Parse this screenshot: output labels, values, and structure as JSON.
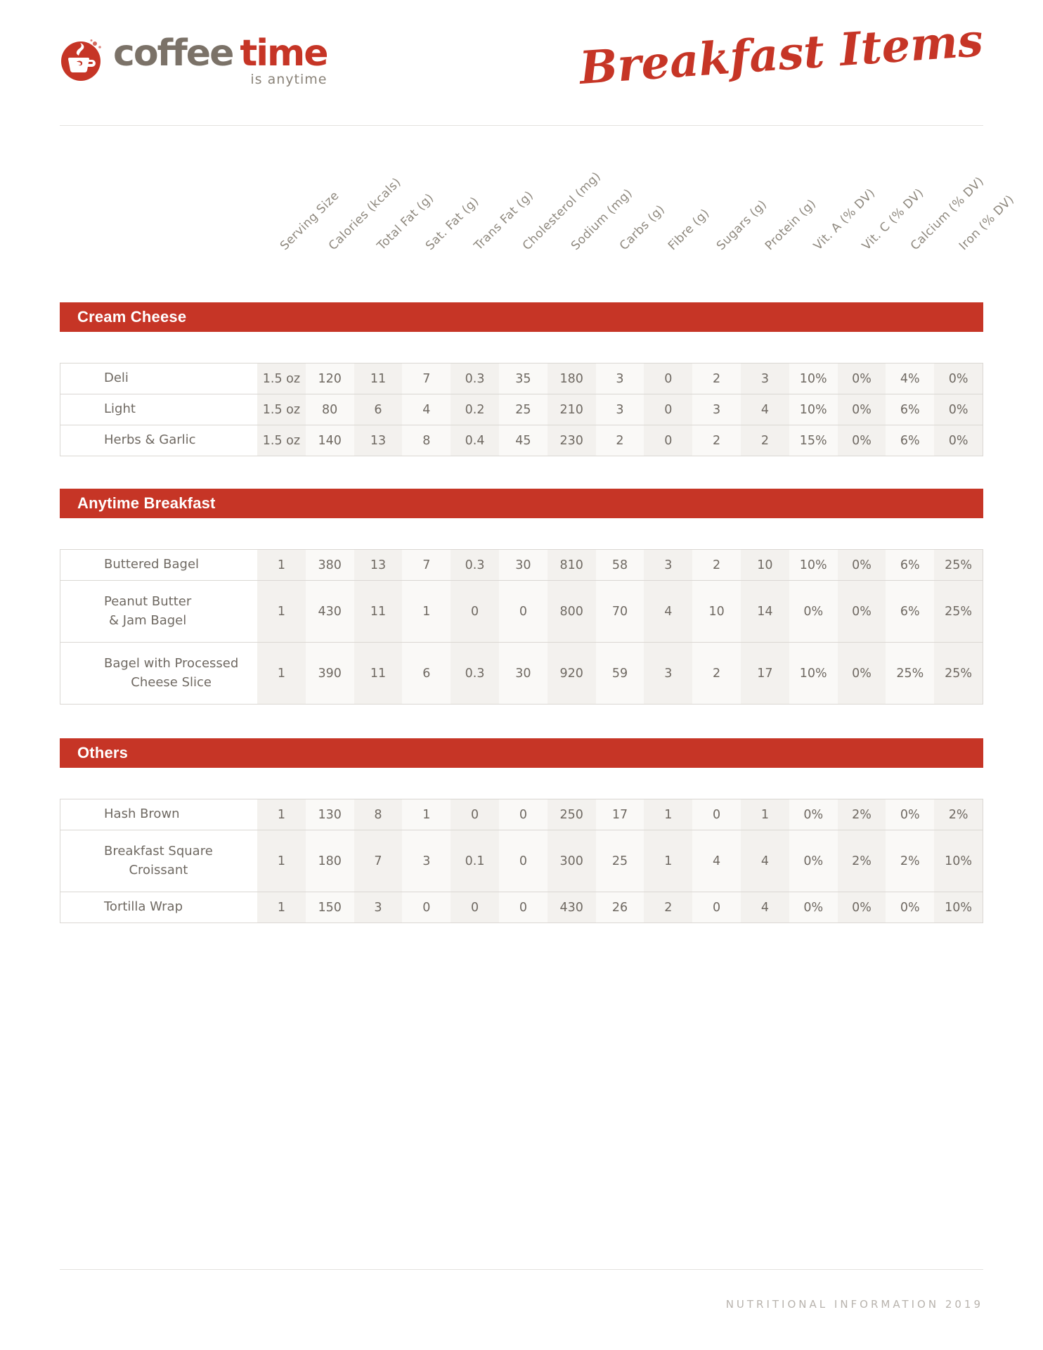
{
  "logo": {
    "word1": "coffee",
    "word2": "time",
    "tagline": "is anytime"
  },
  "header": {
    "title": "Breakfast Items"
  },
  "columns": [
    "Serving Size",
    "Calories (kcals)",
    "Total Fat (g)",
    "Sat. Fat (g)",
    "Trans Fat (g)",
    "Cholesterol (mg)",
    "Sodium (mg)",
    "Carbs (g)",
    "Fibre (g)",
    "Sugars (g)",
    "Protein (g)",
    "Vit. A (% DV)",
    "Vit. C (% DV)",
    "Calcium (% DV)",
    "Iron (% DV)"
  ],
  "sections": [
    {
      "title": "Cream Cheese",
      "rows": [
        {
          "name": "Deli",
          "values": [
            "1.5 oz",
            "120",
            "11",
            "7",
            "0.3",
            "35",
            "180",
            "3",
            "0",
            "2",
            "3",
            "10%",
            "0%",
            "4%",
            "0%"
          ]
        },
        {
          "name": "Light",
          "values": [
            "1.5 oz",
            "80",
            "6",
            "4",
            "0.2",
            "25",
            "210",
            "3",
            "0",
            "3",
            "4",
            "10%",
            "0%",
            "6%",
            "0%"
          ]
        },
        {
          "name": "Herbs & Garlic",
          "values": [
            "1.5 oz",
            "140",
            "13",
            "8",
            "0.4",
            "45",
            "230",
            "2",
            "0",
            "2",
            "2",
            "15%",
            "0%",
            "6%",
            "0%"
          ]
        }
      ]
    },
    {
      "title": "Anytime Breakfast",
      "rows": [
        {
          "name": "Buttered Bagel",
          "values": [
            "1",
            "380",
            "13",
            "7",
            "0.3",
            "30",
            "810",
            "58",
            "3",
            "2",
            "10",
            "10%",
            "0%",
            "6%",
            "25%"
          ]
        },
        {
          "name": "Peanut Butter",
          "name2": "& Jam Bagel",
          "values": [
            "1",
            "430",
            "11",
            "1",
            "0",
            "0",
            "800",
            "70",
            "4",
            "10",
            "14",
            "0%",
            "0%",
            "6%",
            "25%"
          ]
        },
        {
          "name": "Bagel with Processed",
          "name2": "Cheese Slice",
          "values": [
            "1",
            "390",
            "11",
            "6",
            "0.3",
            "30",
            "920",
            "59",
            "3",
            "2",
            "17",
            "10%",
            "0%",
            "25%",
            "25%"
          ]
        }
      ]
    },
    {
      "title": "Others",
      "rows": [
        {
          "name": "Hash Brown",
          "values": [
            "1",
            "130",
            "8",
            "1",
            "0",
            "0",
            "250",
            "17",
            "1",
            "0",
            "1",
            "0%",
            "2%",
            "0%",
            "2%"
          ]
        },
        {
          "name": "Breakfast Square",
          "name2": "Croissant",
          "values": [
            "1",
            "180",
            "7",
            "3",
            "0.1",
            "0",
            "300",
            "25",
            "1",
            "4",
            "4",
            "0%",
            "2%",
            "2%",
            "10%"
          ]
        },
        {
          "name": "Tortilla Wrap",
          "values": [
            "1",
            "150",
            "3",
            "0",
            "0",
            "0",
            "430",
            "26",
            "2",
            "0",
            "4",
            "0%",
            "0%",
            "0%",
            "10%"
          ]
        }
      ]
    }
  ],
  "footer": {
    "text": "NUTRITIONAL INFORMATION 2019"
  },
  "colors": {
    "accent_red": "#c63526",
    "body_text": "#6f6962",
    "header_label": "#8e887e",
    "stripe_dark": "#f3f1ee",
    "stripe_light": "#faf9f7",
    "row_border": "#dad7d3",
    "footer_text": "#b8b3ad",
    "logo_gray": "#7b7268"
  }
}
